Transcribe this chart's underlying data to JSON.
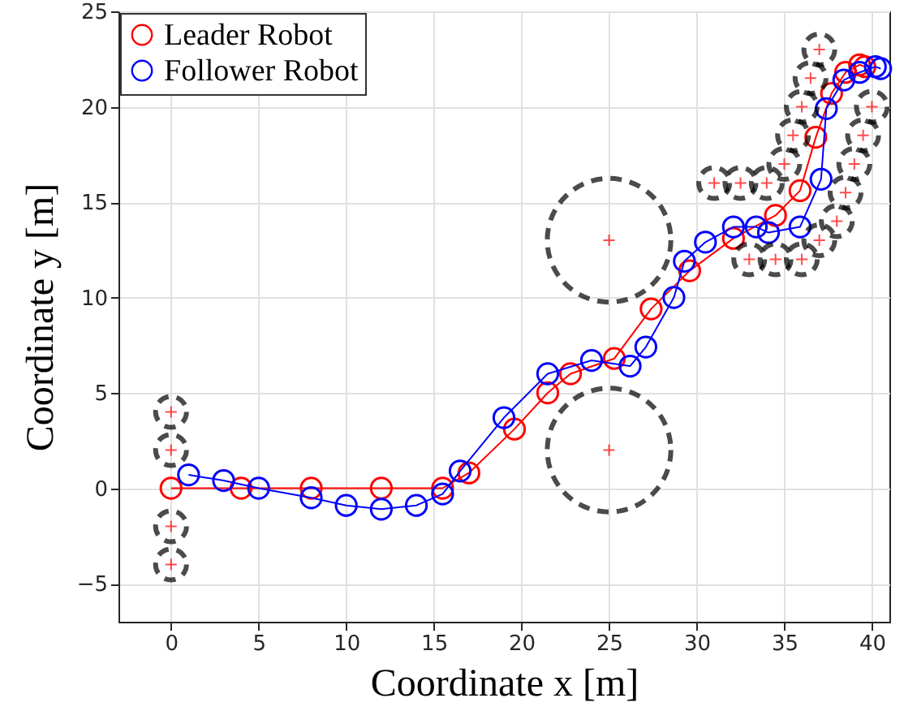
{
  "chart_data": {
    "type": "line",
    "xlabel": "Coordinate x [m]",
    "ylabel": "Coordinate y [m]",
    "xlim": [
      -3,
      41
    ],
    "ylim": [
      -7,
      25
    ],
    "xticks": [
      0,
      5,
      10,
      15,
      20,
      25,
      30,
      35,
      40
    ],
    "yticks": [
      -5,
      0,
      5,
      10,
      15,
      20,
      25
    ],
    "grid": true,
    "legend": "top left",
    "series": [
      {
        "name": "Leader Robot",
        "color": "#ff0000",
        "marker": "circle",
        "x": [
          0,
          4,
          8,
          12,
          15.5,
          17,
          19.6,
          21.5,
          22.8,
          25.3,
          27.4,
          29.6,
          32.1,
          34.5,
          35.9,
          36.8,
          37.7,
          38.5,
          39.3,
          39.6
        ],
        "values": [
          0,
          0,
          0,
          0,
          0,
          0.8,
          3.1,
          5,
          6,
          6.8,
          9.4,
          11.4,
          13.1,
          14.3,
          15.6,
          18.4,
          20.7,
          21.8,
          22.2,
          22.1
        ]
      },
      {
        "name": "Follower Robot",
        "color": "#0000ff",
        "marker": "circle",
        "x": [
          1,
          3,
          5,
          8,
          10,
          12,
          14,
          15.5,
          16.5,
          19,
          21.5,
          24,
          26.2,
          27.1,
          28.7,
          29.3,
          30.5,
          32.1,
          33.4,
          34.1,
          35.9,
          37.1,
          37.4,
          38.4,
          39.3,
          40.2,
          40.5
        ],
        "values": [
          0.7,
          0.4,
          0,
          -0.5,
          -0.9,
          -1.1,
          -0.9,
          -0.3,
          0.9,
          3.7,
          6,
          6.7,
          6.4,
          7.4,
          10,
          11.9,
          12.9,
          13.7,
          13.7,
          13.4,
          13.7,
          16.2,
          19.9,
          21.4,
          21.8,
          22.1,
          22
        ]
      },
      {
        "type": "bubble",
        "color": "#000000",
        "line_style": "dashed",
        "x": [
          0,
          0,
          0,
          0,
          25,
          25,
          37,
          36.5,
          36,
          35.5,
          35,
          31,
          32.5,
          34,
          40,
          39.5,
          39,
          38.5,
          38,
          37,
          33,
          34.5,
          36
        ],
        "values": [
          4,
          2,
          -2,
          -4,
          13,
          2,
          23,
          21.5,
          20,
          18.5,
          17,
          16,
          16,
          16,
          20,
          18.5,
          17,
          15.5,
          14,
          13,
          12,
          12,
          12
        ],
        "sizes": [
          0.0625,
          0.0625,
          0.0625,
          0.0625,
          1,
          1,
          0.0625,
          0.0625,
          0.0625,
          0.0625,
          0.0625,
          0.0625,
          0.0625,
          0.0625,
          0.0625,
          0.0625,
          0.0625,
          0.0625,
          0.0625,
          0.0625,
          0.0625,
          0.0625,
          0.0625
        ]
      },
      {
        "type": "scatter",
        "color": "#ff0000",
        "marker": "cross",
        "x": [
          0,
          0,
          0,
          0,
          25,
          25,
          37,
          36.5,
          36,
          35.5,
          35,
          31,
          32.5,
          34,
          40,
          39.5,
          39,
          38.5,
          38,
          37,
          33,
          34.5,
          36
        ],
        "values": [
          4,
          2,
          -2,
          -4,
          13,
          2,
          23,
          21.5,
          20,
          18.5,
          17,
          16,
          16,
          16,
          20,
          18.5,
          17,
          15.5,
          14,
          13,
          12,
          12,
          12
        ]
      }
    ]
  }
}
